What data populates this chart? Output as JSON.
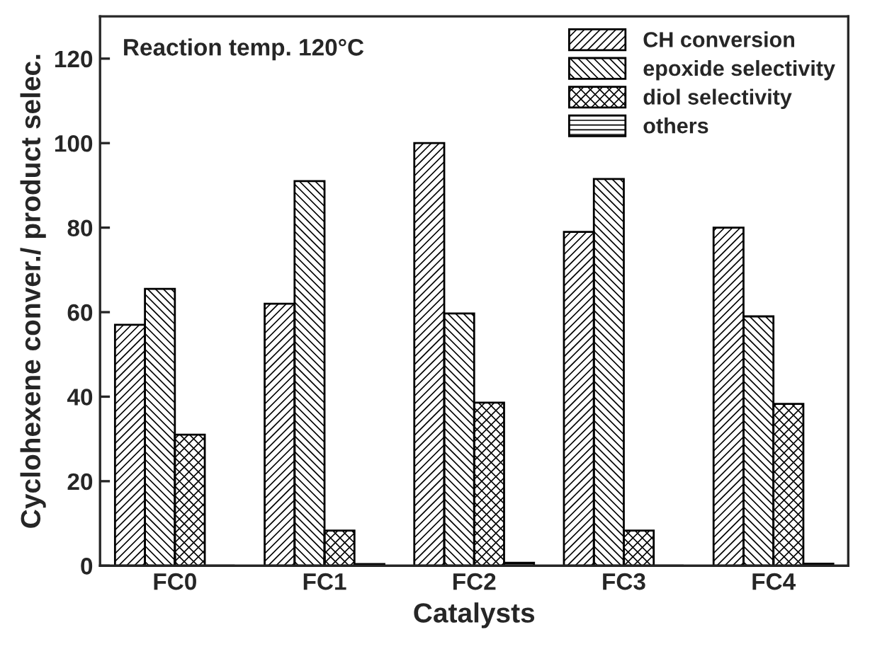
{
  "chart_data": {
    "type": "bar",
    "xlabel": "Catalysts",
    "ylabel": "Cyclohexene conver./ product selec.",
    "categories": [
      "FC0",
      "FC1",
      "FC2",
      "FC3",
      "FC4"
    ],
    "series": [
      {
        "name": "CH conversion",
        "color": "#000000",
        "values": [
          57,
          62,
          100,
          79,
          80
        ]
      },
      {
        "name": "epoxide selectivity",
        "color": "#000000",
        "values": [
          65.5,
          91,
          59.7,
          91.5,
          59
        ]
      },
      {
        "name": "diol selectivity",
        "color": "#000000",
        "values": [
          31,
          8.3,
          38.6,
          8.3,
          38.3
        ]
      },
      {
        "name": "others",
        "color": "#000000",
        "values": [
          0,
          0.4,
          0.7,
          0,
          0.5
        ]
      }
    ],
    "ylim": [
      0,
      130
    ],
    "yticks": [
      0,
      20,
      40,
      60,
      80,
      100,
      120
    ],
    "annotations": [
      "Reaction temp. 120°C"
    ],
    "legend": "top right",
    "grid": false
  }
}
